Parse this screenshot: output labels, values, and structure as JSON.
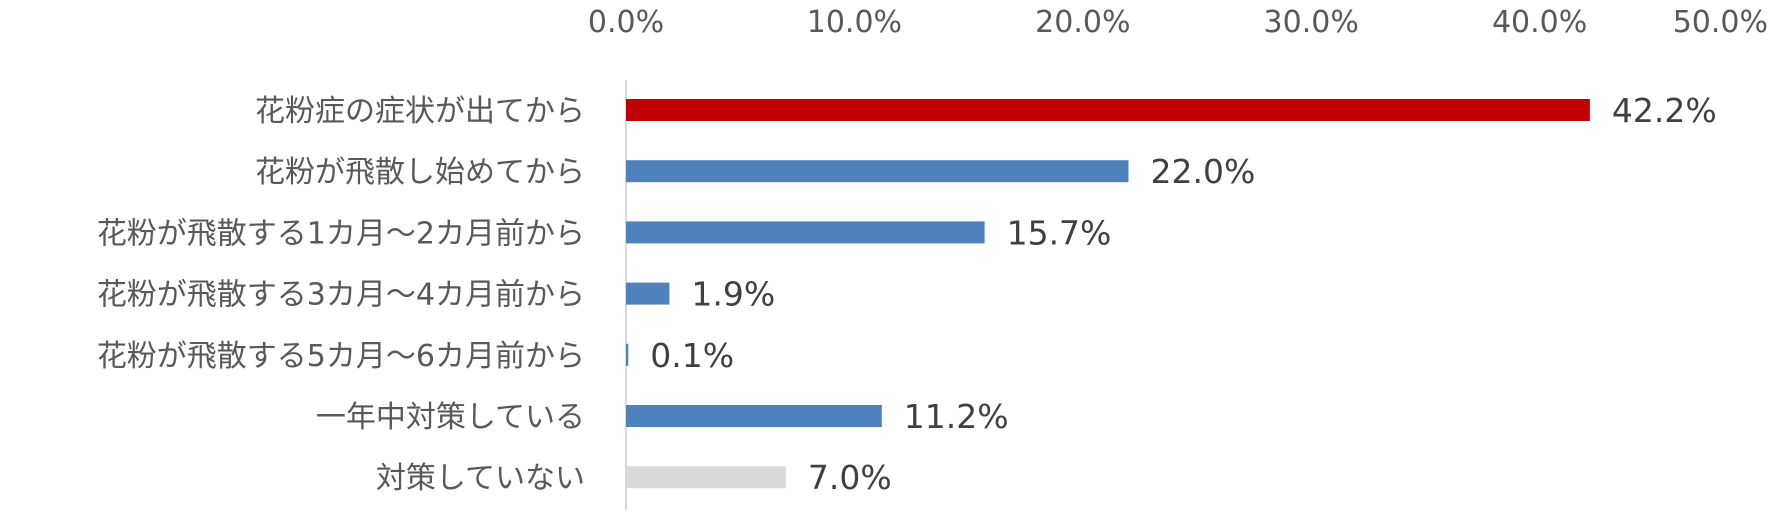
{
  "chart_data": {
    "type": "bar",
    "orientation": "horizontal",
    "categories": [
      "花粉症の症状が出てから",
      "花粉が飛散し始めてから",
      "花粉が飛散する1カ月～2カ月前から",
      "花粉が飛散する3カ月～4カ月前から",
      "花粉が飛散する5カ月～6カ月前から",
      "一年中対策している",
      "対策していない"
    ],
    "values": [
      42.2,
      22.0,
      15.7,
      1.9,
      0.1,
      11.2,
      7.0
    ],
    "value_labels": [
      "42.2%",
      "22.0%",
      "15.7%",
      "1.9%",
      "0.1%",
      "11.2%",
      "7.0%"
    ],
    "bar_colors": [
      "#c00000",
      "#4f81bd",
      "#4f81bd",
      "#4f81bd",
      "#4f81bd",
      "#4f81bd",
      "#d9d9d9"
    ],
    "xlim": [
      0,
      50
    ],
    "x_ticks": [
      "0.0%",
      "10.0%",
      "20.0%",
      "30.0%",
      "40.0%",
      "50.0%"
    ],
    "x_axis_position": "top",
    "grid": false,
    "legend": "none",
    "title": "",
    "xlabel": "",
    "ylabel": ""
  }
}
